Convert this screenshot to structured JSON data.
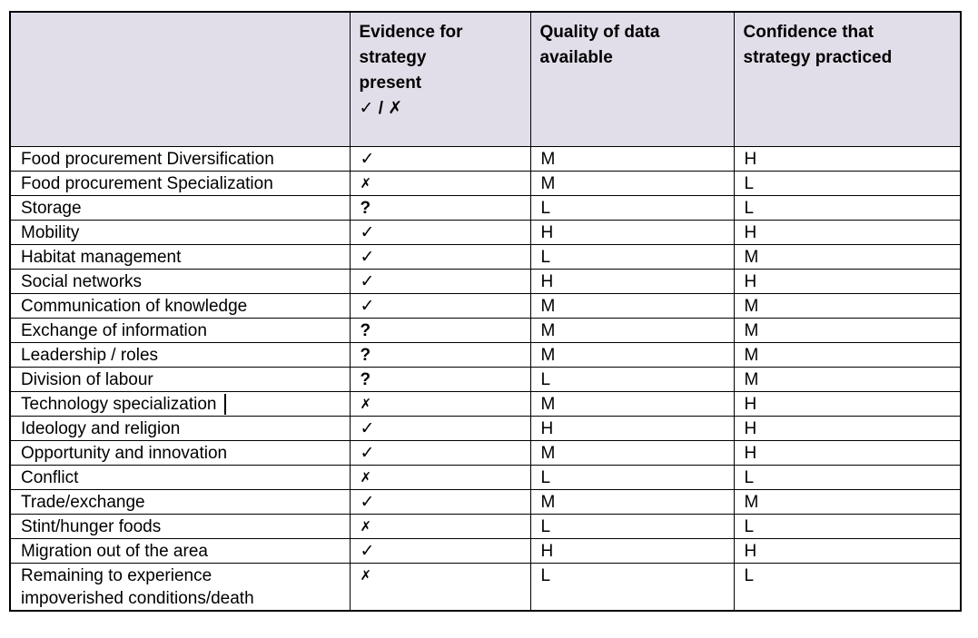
{
  "colors": {
    "header_bg": "#e2dee9",
    "border": "#000000",
    "text": "#000000",
    "page_bg": "#ffffff"
  },
  "table": {
    "columns": [
      {
        "label": ""
      },
      {
        "label": "Evidence for\nstrategy\npresent",
        "legend": "✓ / ✗"
      },
      {
        "label": "Quality of data\navailable"
      },
      {
        "label": "Confidence that\nstrategy practiced"
      }
    ],
    "rows": [
      {
        "label": "Food procurement Diversification",
        "evidence": "✓",
        "quality": "M",
        "confidence": "H"
      },
      {
        "label": "Food procurement Specialization",
        "evidence": "✗",
        "quality": "M",
        "confidence": "L"
      },
      {
        "label": "Storage",
        "evidence": "?",
        "quality": "L",
        "confidence": "L"
      },
      {
        "label": "Mobility",
        "evidence": "✓",
        "quality": "H",
        "confidence": "H"
      },
      {
        "label": "Habitat management",
        "evidence": "✓",
        "quality": "L",
        "confidence": "M"
      },
      {
        "label": "Social networks",
        "evidence": "✓",
        "quality": "H",
        "confidence": "H"
      },
      {
        "label": "Communication of knowledge",
        "evidence": "✓",
        "quality": "M",
        "confidence": "M"
      },
      {
        "label": "Exchange of information",
        "evidence": "?",
        "quality": "M",
        "confidence": "M"
      },
      {
        "label": "Leadership / roles",
        "evidence": "?",
        "quality": "M",
        "confidence": "M"
      },
      {
        "label": "Division of labour",
        "evidence": "?",
        "quality": "L",
        "confidence": "M"
      },
      {
        "label": "Technology specialization",
        "evidence": "✗",
        "quality": "M",
        "confidence": "H"
      },
      {
        "label": "Ideology and religion",
        "evidence": "✓",
        "quality": "H",
        "confidence": "H"
      },
      {
        "label": "Opportunity and innovation",
        "evidence": "✓",
        "quality": "M",
        "confidence": "H"
      },
      {
        "label": "Conflict",
        "evidence": "✗",
        "quality": "L",
        "confidence": "L"
      },
      {
        "label": "Trade/exchange",
        "evidence": "✓",
        "quality": "M",
        "confidence": "M"
      },
      {
        "label": "Stint/hunger foods",
        "evidence": "✗",
        "quality": "L",
        "confidence": "L"
      },
      {
        "label": "Migration out of the area",
        "evidence": "✓",
        "quality": "H",
        "confidence": "H"
      },
      {
        "label": "Remaining to experience\nimpoverished conditions/death",
        "evidence": "✗",
        "quality": "L",
        "confidence": "L"
      }
    ]
  }
}
